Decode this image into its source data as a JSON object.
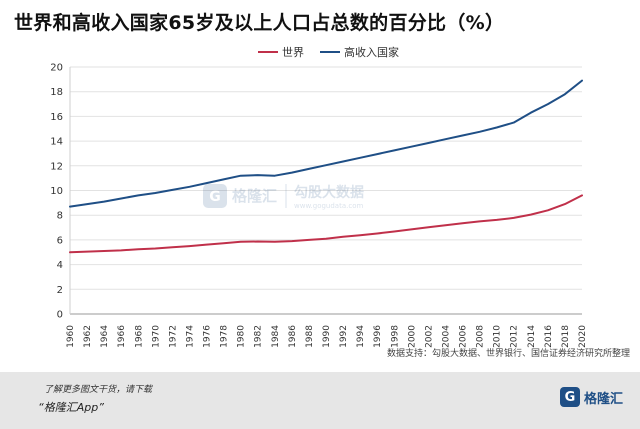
{
  "chart_data": {
    "type": "line",
    "title": "世界和高收入国家65岁及以上人口占总数的百分比（%）",
    "xlabel": "",
    "ylabel": "",
    "x": [
      1960,
      1962,
      1964,
      1966,
      1968,
      1970,
      1972,
      1974,
      1976,
      1978,
      1980,
      1982,
      1984,
      1986,
      1988,
      1990,
      1992,
      1994,
      1996,
      1998,
      2000,
      2002,
      2004,
      2006,
      2008,
      2010,
      2012,
      2014,
      2016,
      2018,
      2020
    ],
    "x_ticks": [
      "1960",
      "1962",
      "1964",
      "1966",
      "1968",
      "1970",
      "1972",
      "1974",
      "1976",
      "1978",
      "1980",
      "1982",
      "1984",
      "1986",
      "1988",
      "1990",
      "1992",
      "1994",
      "1996",
      "1998",
      "2000",
      "2002",
      "2004",
      "2006",
      "2008",
      "2010",
      "2012",
      "2014",
      "2016",
      "2018",
      "2020"
    ],
    "ylim": [
      0,
      20
    ],
    "y_ticks": [
      "0",
      "2",
      "4",
      "6",
      "8",
      "10",
      "12",
      "14",
      "16",
      "18",
      "20"
    ],
    "grid": "horizontal",
    "legend_position": "top",
    "series": [
      {
        "name": "世界",
        "color": "#c0304a",
        "values": [
          5.0,
          5.05,
          5.1,
          5.15,
          5.25,
          5.3,
          5.4,
          5.5,
          5.62,
          5.73,
          5.85,
          5.87,
          5.85,
          5.9,
          6.0,
          6.1,
          6.25,
          6.38,
          6.52,
          6.68,
          6.85,
          7.02,
          7.18,
          7.35,
          7.5,
          7.62,
          7.78,
          8.05,
          8.4,
          8.9,
          9.6
        ]
      },
      {
        "name": "高收入国家",
        "color": "#1f4f86",
        "values": [
          8.7,
          8.9,
          9.1,
          9.35,
          9.6,
          9.8,
          10.05,
          10.3,
          10.6,
          10.9,
          11.2,
          11.25,
          11.2,
          11.45,
          11.75,
          12.05,
          12.35,
          12.65,
          12.95,
          13.25,
          13.55,
          13.85,
          14.15,
          14.45,
          14.75,
          15.1,
          15.5,
          16.3,
          17.0,
          17.8,
          18.9
        ]
      }
    ]
  },
  "source": "数据支持：勾股大数据、世界银行、国信证券经济研究所整理",
  "watermark": {
    "brand": "格隆汇",
    "product": "勾股大数据",
    "url": "www.gogudata.com"
  },
  "footer": {
    "note": "了解更多图文干货，请下载",
    "app": "“格隆汇App”",
    "logo_text": "格隆汇",
    "logo_mark": "G"
  }
}
